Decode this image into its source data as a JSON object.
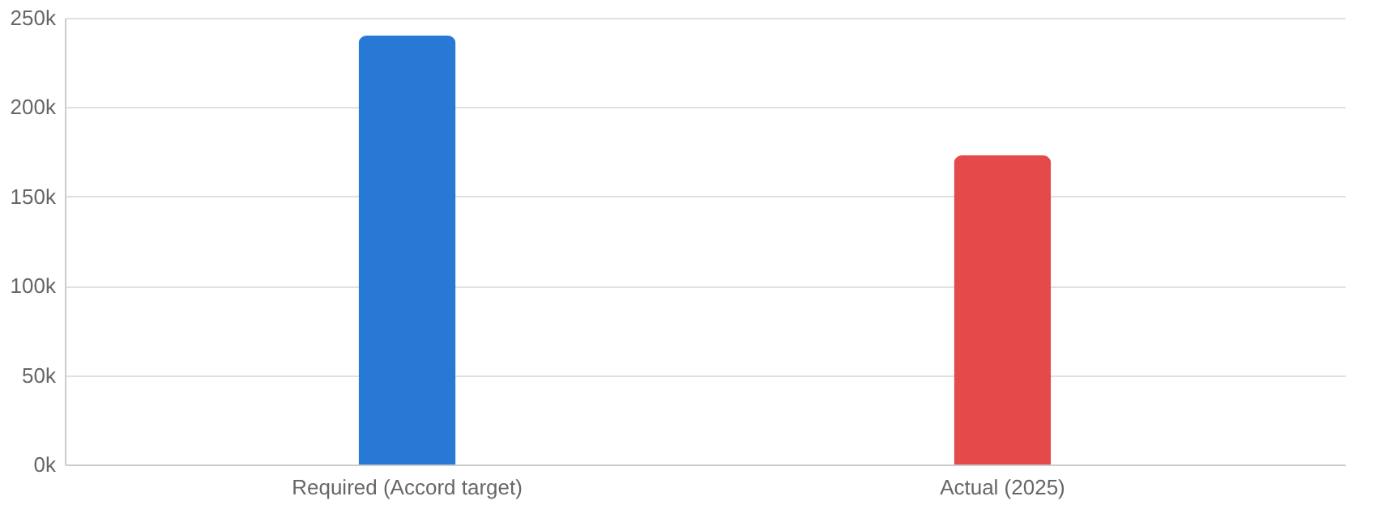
{
  "chart_data": {
    "type": "bar",
    "categories": [
      "Required (Accord target)",
      "Actual (2025)"
    ],
    "values": [
      240000,
      173000
    ],
    "colors": [
      "#2878d6",
      "#e44a4a"
    ],
    "ylim": [
      0,
      250000
    ],
    "yticks": [
      {
        "value": 0,
        "label": "0k"
      },
      {
        "value": 50000,
        "label": "50k"
      },
      {
        "value": 100000,
        "label": "100k"
      },
      {
        "value": 150000,
        "label": "150k"
      },
      {
        "value": 200000,
        "label": "200k"
      },
      {
        "value": 250000,
        "label": "250k"
      }
    ],
    "grid": "y"
  }
}
